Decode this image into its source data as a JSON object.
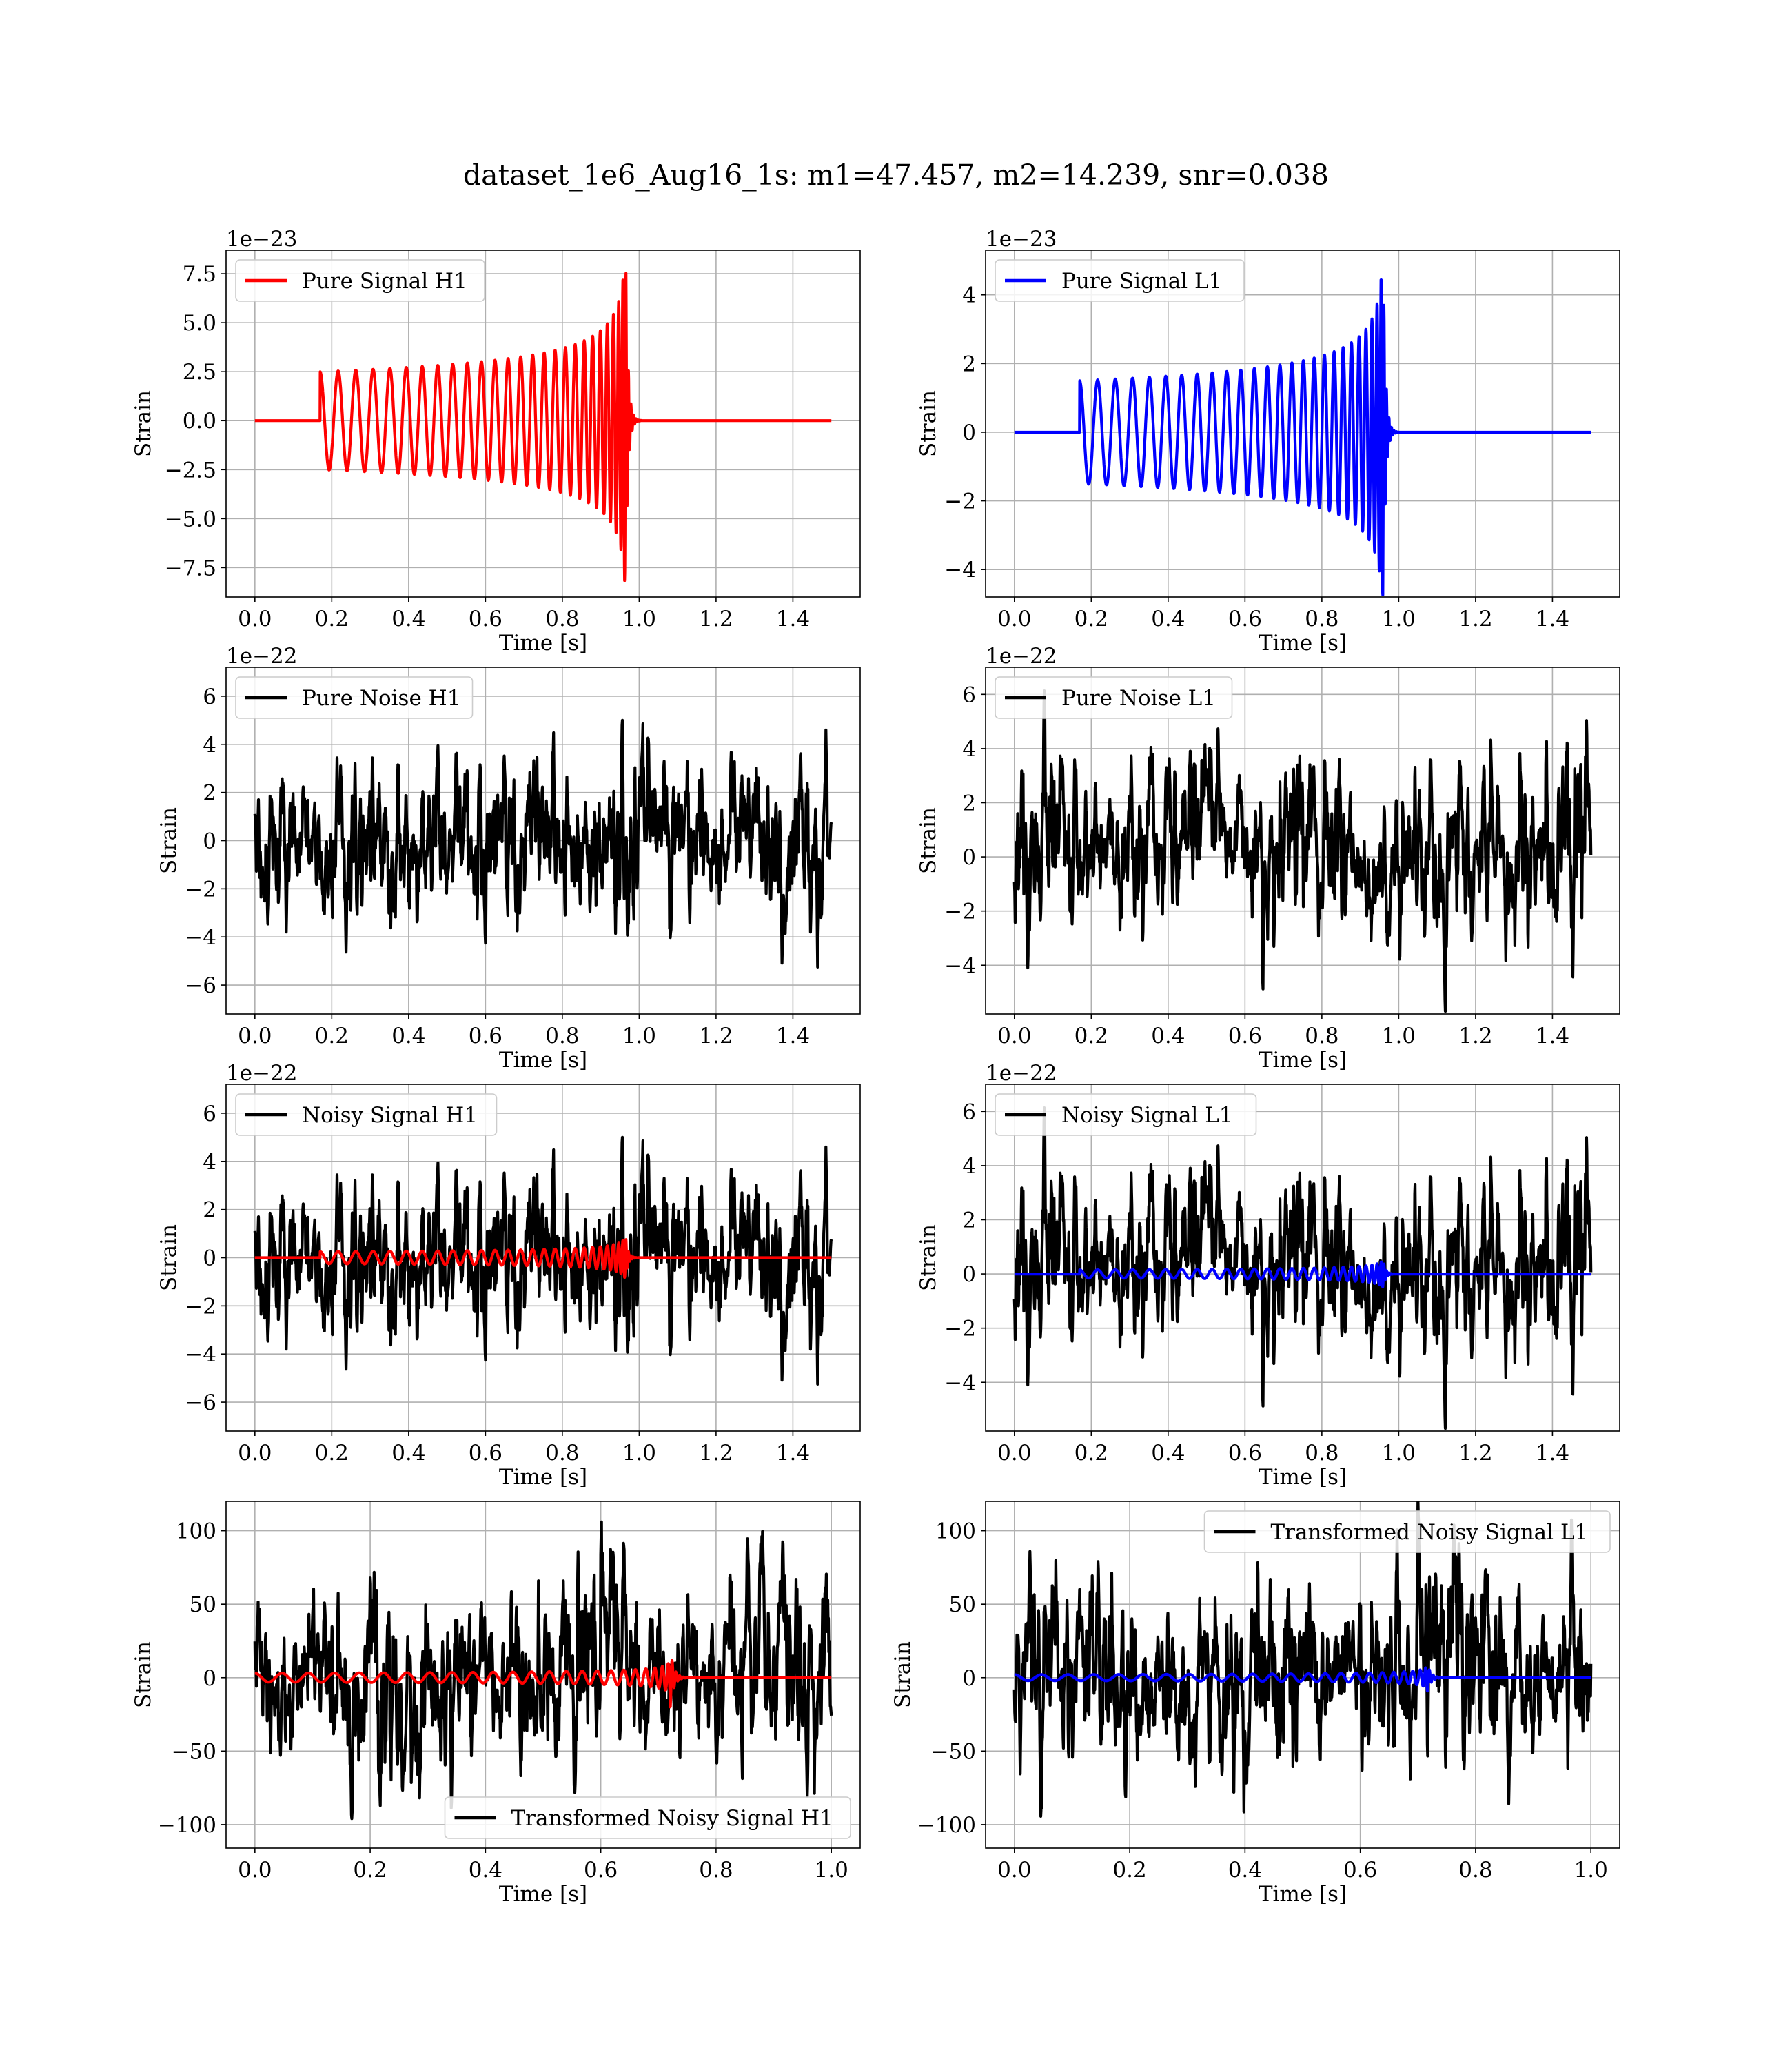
{
  "figure": {
    "suptitle": "dataset_1e6_Aug16_1s: m1=47.457, m2=14.239, snr=0.038"
  },
  "colors": {
    "h1_signal": "#ff0000",
    "l1_signal": "#0000ff",
    "noise": "#000000",
    "grid": "#b0b0b0"
  },
  "chart_data": [
    {
      "id": "pure-signal-h1",
      "type": "line",
      "title": "",
      "xlabel": "Time [s]",
      "ylabel": "Strain",
      "offset_text": "1e−23",
      "xlim": [
        -0.075,
        1.575
      ],
      "ylim": [
        -9.0,
        8.7
      ],
      "xticks": [
        0.0,
        0.2,
        0.4,
        0.6,
        0.8,
        1.0,
        1.2,
        1.4
      ],
      "xtick_labels": [
        "0.0",
        "0.2",
        "0.4",
        "0.6",
        "0.8",
        "1.0",
        "1.2",
        "1.4"
      ],
      "yticks": [
        -7.5,
        -5.0,
        -2.5,
        0.0,
        2.5,
        5.0,
        7.5
      ],
      "ytick_labels": [
        "−7.5",
        "−5.0",
        "−2.5",
        "0.0",
        "2.5",
        "5.0",
        "7.5"
      ],
      "grid": true,
      "legend_position": "upper-left",
      "series": [
        {
          "name": "Pure Signal H1",
          "kind": "chirp",
          "color": "#ff0000",
          "in_legend": true,
          "x_start": 0.0,
          "x_end": 1.5,
          "onset": 0.17,
          "merger": 0.965,
          "amp_start": 2.5,
          "amp_peak": 8.2,
          "f_start": 21,
          "f_peak": 110
        }
      ]
    },
    {
      "id": "pure-signal-l1",
      "type": "line",
      "title": "",
      "xlabel": "Time [s]",
      "ylabel": "Strain",
      "offset_text": "1e−23",
      "xlim": [
        -0.075,
        1.575
      ],
      "ylim": [
        -4.8,
        5.3
      ],
      "xticks": [
        0.0,
        0.2,
        0.4,
        0.6,
        0.8,
        1.0,
        1.2,
        1.4
      ],
      "xtick_labels": [
        "0.0",
        "0.2",
        "0.4",
        "0.6",
        "0.8",
        "1.0",
        "1.2",
        "1.4"
      ],
      "yticks": [
        -4,
        -2,
        0,
        2,
        4
      ],
      "ytick_labels": [
        "−4",
        "−2",
        "0",
        "2",
        "4"
      ],
      "grid": true,
      "legend_position": "upper-left",
      "series": [
        {
          "name": "Pure Signal L1",
          "kind": "chirp",
          "color": "#0000ff",
          "in_legend": true,
          "x_start": 0.0,
          "x_end": 1.5,
          "onset": 0.17,
          "merger": 0.96,
          "amp_start": 1.5,
          "amp_peak": 4.8,
          "f_start": 21,
          "f_peak": 110
        }
      ]
    },
    {
      "id": "pure-noise-h1",
      "type": "line",
      "title": "",
      "xlabel": "Time [s]",
      "ylabel": "Strain",
      "offset_text": "1e−22",
      "xlim": [
        -0.075,
        1.575
      ],
      "ylim": [
        -7.2,
        7.2
      ],
      "xticks": [
        0.0,
        0.2,
        0.4,
        0.6,
        0.8,
        1.0,
        1.2,
        1.4
      ],
      "xtick_labels": [
        "0.0",
        "0.2",
        "0.4",
        "0.6",
        "0.8",
        "1.0",
        "1.2",
        "1.4"
      ],
      "yticks": [
        -6,
        -4,
        -2,
        0,
        2,
        4,
        6
      ],
      "ytick_labels": [
        "−6",
        "−4",
        "−2",
        "0",
        "2",
        "4",
        "6"
      ],
      "grid": true,
      "legend_position": "upper-left",
      "series": [
        {
          "name": "Pure Noise H1",
          "kind": "noise",
          "color": "#000000",
          "in_legend": true,
          "x_start": 0.0,
          "x_end": 1.5,
          "sigma": 1.6,
          "seed": 11
        }
      ]
    },
    {
      "id": "pure-noise-l1",
      "type": "line",
      "title": "",
      "xlabel": "Time [s]",
      "ylabel": "Strain",
      "offset_text": "1e−22",
      "xlim": [
        -0.075,
        1.575
      ],
      "ylim": [
        -5.8,
        7.0
      ],
      "xticks": [
        0.0,
        0.2,
        0.4,
        0.6,
        0.8,
        1.0,
        1.2,
        1.4
      ],
      "xtick_labels": [
        "0.0",
        "0.2",
        "0.4",
        "0.6",
        "0.8",
        "1.0",
        "1.2",
        "1.4"
      ],
      "yticks": [
        -4,
        -2,
        0,
        2,
        4,
        6
      ],
      "ytick_labels": [
        "−4",
        "−2",
        "0",
        "2",
        "4",
        "6"
      ],
      "grid": true,
      "legend_position": "upper-left",
      "series": [
        {
          "name": "Pure Noise L1",
          "kind": "noise",
          "color": "#000000",
          "in_legend": true,
          "x_start": 0.0,
          "x_end": 1.5,
          "sigma": 1.5,
          "seed": 23
        }
      ]
    },
    {
      "id": "noisy-signal-h1",
      "type": "line",
      "title": "",
      "xlabel": "Time [s]",
      "ylabel": "Strain",
      "offset_text": "1e−22",
      "xlim": [
        -0.075,
        1.575
      ],
      "ylim": [
        -7.2,
        7.2
      ],
      "xticks": [
        0.0,
        0.2,
        0.4,
        0.6,
        0.8,
        1.0,
        1.2,
        1.4
      ],
      "xtick_labels": [
        "0.0",
        "0.2",
        "0.4",
        "0.6",
        "0.8",
        "1.0",
        "1.2",
        "1.4"
      ],
      "yticks": [
        -6,
        -4,
        -2,
        0,
        2,
        4,
        6
      ],
      "ytick_labels": [
        "−6",
        "−4",
        "−2",
        "0",
        "2",
        "4",
        "6"
      ],
      "grid": true,
      "legend_position": "upper-left",
      "series": [
        {
          "name": "Noisy Signal H1",
          "kind": "noise",
          "color": "#000000",
          "in_legend": true,
          "x_start": 0.0,
          "x_end": 1.5,
          "sigma": 1.6,
          "seed": 11
        },
        {
          "name": "",
          "kind": "chirp",
          "color": "#ff0000",
          "in_legend": false,
          "x_start": 0.0,
          "x_end": 1.5,
          "onset": 0.17,
          "merger": 0.965,
          "amp_start": 0.25,
          "amp_peak": 0.82,
          "f_start": 21,
          "f_peak": 110
        }
      ]
    },
    {
      "id": "noisy-signal-l1",
      "type": "line",
      "title": "",
      "xlabel": "Time [s]",
      "ylabel": "Strain",
      "offset_text": "1e−22",
      "xlim": [
        -0.075,
        1.575
      ],
      "ylim": [
        -5.8,
        7.0
      ],
      "xticks": [
        0.0,
        0.2,
        0.4,
        0.6,
        0.8,
        1.0,
        1.2,
        1.4
      ],
      "xtick_labels": [
        "0.0",
        "0.2",
        "0.4",
        "0.6",
        "0.8",
        "1.0",
        "1.2",
        "1.4"
      ],
      "yticks": [
        -4,
        -2,
        0,
        2,
        4,
        6
      ],
      "ytick_labels": [
        "−4",
        "−2",
        "0",
        "2",
        "4",
        "6"
      ],
      "grid": true,
      "legend_position": "upper-left",
      "series": [
        {
          "name": "Noisy Signal L1",
          "kind": "noise",
          "color": "#000000",
          "in_legend": true,
          "x_start": 0.0,
          "x_end": 1.5,
          "sigma": 1.5,
          "seed": 23
        },
        {
          "name": "",
          "kind": "chirp",
          "color": "#0000ff",
          "in_legend": false,
          "x_start": 0.0,
          "x_end": 1.5,
          "onset": 0.17,
          "merger": 0.96,
          "amp_start": 0.15,
          "amp_peak": 0.48,
          "f_start": 21,
          "f_peak": 110
        }
      ]
    },
    {
      "id": "transformed-noisy-signal-h1",
      "type": "line",
      "title": "",
      "xlabel": "Time [s]",
      "ylabel": "Strain",
      "offset_text": "",
      "xlim": [
        -0.05,
        1.05
      ],
      "ylim": [
        -116,
        120
      ],
      "xticks": [
        0.0,
        0.2,
        0.4,
        0.6,
        0.8,
        1.0
      ],
      "xtick_labels": [
        "0.0",
        "0.2",
        "0.4",
        "0.6",
        "0.8",
        "1.0"
      ],
      "yticks": [
        -100,
        -50,
        0,
        50,
        100
      ],
      "ytick_labels": [
        "−100",
        "−50",
        "0",
        "50",
        "100"
      ],
      "grid": true,
      "legend_position": "lower-right",
      "series": [
        {
          "name": "Transformed Noisy Signal H1",
          "kind": "noise",
          "color": "#000000",
          "in_legend": true,
          "x_start": 0.0,
          "x_end": 1.0,
          "sigma": 30,
          "seed": 37
        },
        {
          "name": "",
          "kind": "chirp",
          "color": "#ff0000",
          "in_legend": false,
          "x_start": 0.0,
          "x_end": 1.0,
          "onset": 0.0,
          "merger": 0.72,
          "amp_start": 3,
          "amp_peak": 22,
          "f_start": 21,
          "f_peak": 110
        }
      ]
    },
    {
      "id": "transformed-noisy-signal-l1",
      "type": "line",
      "title": "",
      "xlabel": "Time [s]",
      "ylabel": "Strain",
      "offset_text": "",
      "xlim": [
        -0.05,
        1.05
      ],
      "ylim": [
        -116,
        120
      ],
      "xticks": [
        0.0,
        0.2,
        0.4,
        0.6,
        0.8,
        1.0
      ],
      "xtick_labels": [
        "0.0",
        "0.2",
        "0.4",
        "0.6",
        "0.8",
        "1.0"
      ],
      "yticks": [
        -100,
        -50,
        0,
        50,
        100
      ],
      "ytick_labels": [
        "−100",
        "−50",
        "0",
        "50",
        "100"
      ],
      "grid": true,
      "legend_position": "upper-right",
      "series": [
        {
          "name": "Transformed Noisy Signal L1",
          "kind": "noise",
          "color": "#000000",
          "in_legend": true,
          "x_start": 0.0,
          "x_end": 1.0,
          "sigma": 30,
          "seed": 51
        },
        {
          "name": "",
          "kind": "chirp",
          "color": "#0000ff",
          "in_legend": false,
          "x_start": 0.0,
          "x_end": 1.0,
          "onset": 0.0,
          "merger": 0.715,
          "amp_start": 2,
          "amp_peak": 12,
          "f_start": 21,
          "f_peak": 110
        }
      ]
    }
  ]
}
